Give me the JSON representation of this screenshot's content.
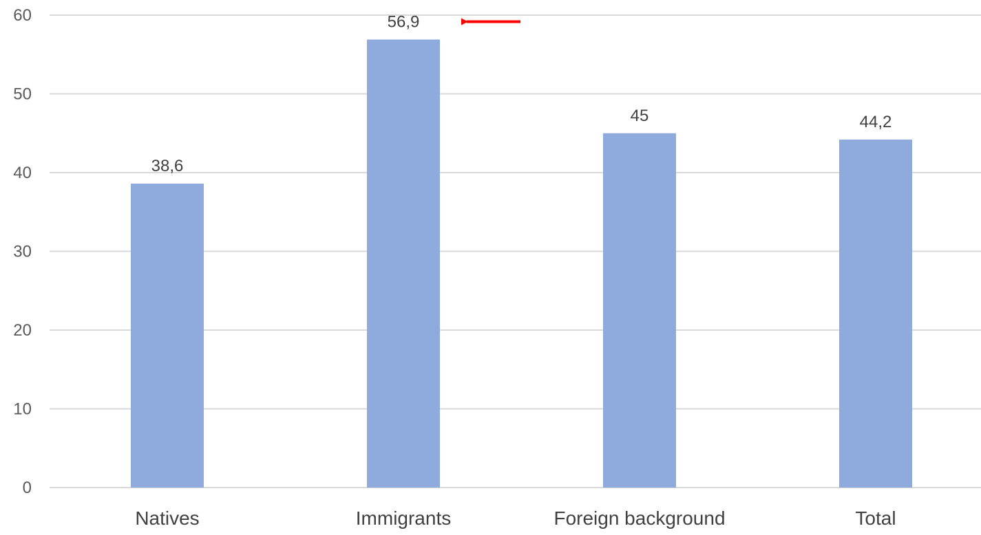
{
  "chart_data": {
    "type": "bar",
    "categories": [
      "Natives",
      "Immigrants",
      "Foreign background",
      "Total"
    ],
    "values": [
      38.6,
      56.9,
      45,
      44.2
    ],
    "value_labels": [
      "38,6",
      "56,9",
      "45",
      "44,2"
    ],
    "title": "",
    "xlabel": "",
    "ylabel": "",
    "ylim": [
      0,
      60
    ],
    "yticks": [
      0,
      10,
      20,
      30,
      40,
      50,
      60
    ],
    "grid": true,
    "legend": "none",
    "bar_color": "#8faadc",
    "annotation": {
      "type": "arrow",
      "points_to": "Immigrants",
      "color": "#ff0000"
    }
  }
}
